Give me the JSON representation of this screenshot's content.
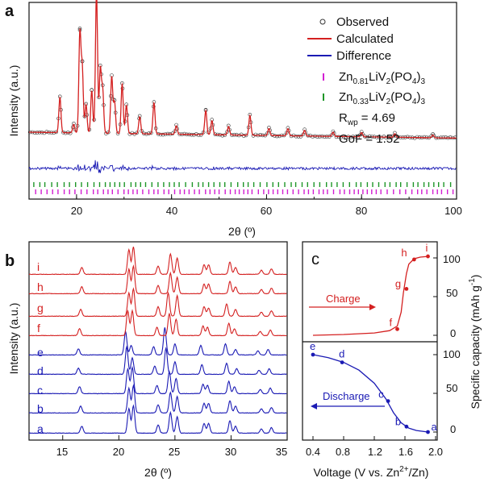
{
  "colors": {
    "observed": "#333333",
    "calculated": "#d42020",
    "difference": "#1a1ab4",
    "tick1": "#d21ed2",
    "tick2": "#1e9628",
    "charge": "#d42020",
    "discharge": "#1a1ab4"
  },
  "chart_data": [
    {
      "panel": "a",
      "type": "line",
      "xlabel": "2θ (º)",
      "ylabel": "Intensity (a.u.)",
      "xlim": [
        10,
        100
      ],
      "x_ticks": [
        "20",
        "40",
        "60",
        "80",
        "100"
      ],
      "legend": [
        "Observed",
        "Calculated",
        "Difference"
      ],
      "phase_ticks": [
        {
          "label_main": "Zn",
          "label_sub": "0.81",
          "label_rest": "LiV",
          "label_sub2": "2",
          "label_rest2": "(PO",
          "label_sub3": "4",
          "label_rest3": ")",
          "label_sub4": "3"
        },
        {
          "label_main": "Zn",
          "label_sub": "0.33",
          "label_rest": "LiV",
          "label_sub2": "2",
          "label_rest2": "(PO",
          "label_sub3": "4",
          "label_rest3": ")",
          "label_sub4": "3"
        }
      ],
      "rwp_label": "R",
      "rwp_sub": "wp",
      "rwp_value": " = 4.69",
      "gof": "GoF = 1.52",
      "baseline": 0.12,
      "peaks": [
        {
          "x": 16.5,
          "y": 0.25
        },
        {
          "x": 19.4,
          "y": 0.06
        },
        {
          "x": 20.7,
          "y": 0.7
        },
        {
          "x": 21.2,
          "y": 0.45
        },
        {
          "x": 22.0,
          "y": 0.2
        },
        {
          "x": 23.2,
          "y": 0.3
        },
        {
          "x": 24.2,
          "y": 1.0
        },
        {
          "x": 25.0,
          "y": 0.45
        },
        {
          "x": 25.5,
          "y": 0.3
        },
        {
          "x": 27.4,
          "y": 0.4
        },
        {
          "x": 28.0,
          "y": 0.22
        },
        {
          "x": 29.6,
          "y": 0.35
        },
        {
          "x": 30.5,
          "y": 0.2
        },
        {
          "x": 33.3,
          "y": 0.12
        },
        {
          "x": 36.3,
          "y": 0.22
        },
        {
          "x": 41.0,
          "y": 0.06
        },
        {
          "x": 47.2,
          "y": 0.17
        },
        {
          "x": 48.5,
          "y": 0.1
        },
        {
          "x": 52.0,
          "y": 0.06
        },
        {
          "x": 56.5,
          "y": 0.14
        },
        {
          "x": 60.5,
          "y": 0.05
        },
        {
          "x": 64.5,
          "y": 0.05
        },
        {
          "x": 68.0,
          "y": 0.04
        },
        {
          "x": 74.0,
          "y": 0.03
        },
        {
          "x": 80.0,
          "y": 0.03
        },
        {
          "x": 87.0,
          "y": 0.025
        },
        {
          "x": 95.0,
          "y": 0.02
        }
      ]
    },
    {
      "panel": "b",
      "type": "line",
      "xlabel": "2θ (º)",
      "ylabel": "Intensity (a.u.)",
      "xlim": [
        12,
        35
      ],
      "x_ticks": [
        "15",
        "20",
        "25",
        "30",
        "35"
      ],
      "series": [
        {
          "name": "a",
          "color": "blue",
          "peaks": [
            [
              16.7,
              0.25
            ],
            [
              20.9,
              0.9
            ],
            [
              21.3,
              1.0
            ],
            [
              23.5,
              0.3
            ],
            [
              24.6,
              0.75
            ],
            [
              25.2,
              0.6
            ],
            [
              27.6,
              0.35
            ],
            [
              28.0,
              0.35
            ],
            [
              29.9,
              0.45
            ],
            [
              30.4,
              0.25
            ],
            [
              32.7,
              0.15
            ],
            [
              33.6,
              0.2
            ]
          ]
        },
        {
          "name": "b",
          "color": "blue",
          "peaks": [
            [
              16.6,
              0.25
            ],
            [
              20.9,
              0.9
            ],
            [
              21.3,
              1.0
            ],
            [
              23.5,
              0.3
            ],
            [
              24.6,
              0.75
            ],
            [
              25.2,
              0.6
            ],
            [
              27.6,
              0.35
            ],
            [
              28.0,
              0.35
            ],
            [
              29.9,
              0.45
            ],
            [
              30.4,
              0.25
            ],
            [
              32.7,
              0.15
            ],
            [
              33.6,
              0.2
            ]
          ]
        },
        {
          "name": "c",
          "color": "blue",
          "peaks": [
            [
              16.5,
              0.25
            ],
            [
              20.8,
              0.9
            ],
            [
              21.2,
              0.95
            ],
            [
              23.4,
              0.3
            ],
            [
              24.5,
              0.8
            ],
            [
              25.1,
              0.55
            ],
            [
              27.5,
              0.35
            ],
            [
              27.9,
              0.3
            ],
            [
              29.8,
              0.45
            ],
            [
              30.3,
              0.25
            ],
            [
              32.6,
              0.15
            ],
            [
              33.5,
              0.2
            ]
          ]
        },
        {
          "name": "d",
          "color": "blue",
          "peaks": [
            [
              16.4,
              0.22
            ],
            [
              20.7,
              1.0
            ],
            [
              21.2,
              0.6
            ],
            [
              23.2,
              0.3
            ],
            [
              24.2,
              0.95
            ],
            [
              25.0,
              0.45
            ],
            [
              27.4,
              0.35
            ],
            [
              29.6,
              0.4
            ],
            [
              30.5,
              0.2
            ],
            [
              32.5,
              0.15
            ],
            [
              33.4,
              0.2
            ]
          ]
        },
        {
          "name": "e",
          "color": "blue",
          "peaks": [
            [
              16.4,
              0.22
            ],
            [
              20.6,
              0.85
            ],
            [
              21.1,
              0.35
            ],
            [
              23.1,
              0.3
            ],
            [
              24.1,
              1.0
            ],
            [
              25.0,
              0.4
            ],
            [
              27.3,
              0.35
            ],
            [
              29.5,
              0.4
            ],
            [
              30.4,
              0.2
            ],
            [
              32.4,
              0.15
            ],
            [
              33.3,
              0.2
            ]
          ]
        },
        {
          "name": "f",
          "color": "red",
          "peaks": [
            [
              16.5,
              0.25
            ],
            [
              20.8,
              0.9
            ],
            [
              21.2,
              0.9
            ],
            [
              23.4,
              0.3
            ],
            [
              24.5,
              0.8
            ],
            [
              25.1,
              0.6
            ],
            [
              27.5,
              0.35
            ],
            [
              27.9,
              0.3
            ],
            [
              29.8,
              0.45
            ],
            [
              30.3,
              0.25
            ],
            [
              32.6,
              0.15
            ],
            [
              33.5,
              0.2
            ]
          ]
        },
        {
          "name": "g",
          "color": "red",
          "peaks": [
            [
              16.6,
              0.25
            ],
            [
              20.9,
              0.85
            ],
            [
              21.3,
              1.0
            ],
            [
              23.5,
              0.35
            ],
            [
              24.4,
              0.85
            ],
            [
              25.2,
              0.75
            ],
            [
              27.6,
              0.35
            ],
            [
              28.0,
              0.3
            ],
            [
              29.6,
              0.45
            ],
            [
              30.4,
              0.25
            ],
            [
              32.7,
              0.15
            ],
            [
              33.6,
              0.2
            ]
          ]
        },
        {
          "name": "h",
          "color": "red",
          "peaks": [
            [
              16.7,
              0.25
            ],
            [
              20.9,
              0.9
            ],
            [
              21.3,
              1.0
            ],
            [
              23.5,
              0.3
            ],
            [
              24.6,
              0.75
            ],
            [
              25.2,
              0.6
            ],
            [
              27.6,
              0.35
            ],
            [
              28.0,
              0.35
            ],
            [
              29.9,
              0.45
            ],
            [
              30.4,
              0.25
            ],
            [
              32.7,
              0.15
            ],
            [
              33.6,
              0.2
            ]
          ]
        },
        {
          "name": "i",
          "color": "red",
          "peaks": [
            [
              16.7,
              0.25
            ],
            [
              20.9,
              0.9
            ],
            [
              21.3,
              1.0
            ],
            [
              23.5,
              0.3
            ],
            [
              24.6,
              0.75
            ],
            [
              25.2,
              0.6
            ],
            [
              27.6,
              0.35
            ],
            [
              28.0,
              0.35
            ],
            [
              29.9,
              0.45
            ],
            [
              30.4,
              0.25
            ],
            [
              32.7,
              0.15
            ],
            [
              33.6,
              0.2
            ]
          ]
        }
      ]
    },
    {
      "panel": "c",
      "type": "line",
      "xlabel_main": "Voltage (V vs. Zn",
      "xlabel_sup": "2+",
      "xlabel_rest": "/Zn)",
      "ylabel_main": "Specific capacity (mAh g",
      "ylabel_sup": "-1",
      "ylabel_rest": ")",
      "xlim": [
        0.3,
        2.0
      ],
      "x_ticks": [
        "0.4",
        "0.8",
        "1.2",
        "1.6",
        "2.0"
      ],
      "y_ticks": [
        "0",
        "50",
        "100"
      ],
      "charge_label": "Charge",
      "discharge_label": "Discharge",
      "charge": {
        "x": [
          0.4,
          0.8,
          1.2,
          1.4,
          1.5,
          1.55,
          1.58,
          1.62,
          1.65,
          1.72,
          1.8,
          1.9
        ],
        "y": [
          0,
          1,
          3,
          6,
          12,
          30,
          55,
          80,
          92,
          99,
          101,
          102
        ],
        "points": [
          {
            "label": "f",
            "x": 1.5,
            "y": 8
          },
          {
            "label": "g",
            "x": 1.62,
            "y": 60
          },
          {
            "label": "h",
            "x": 1.72,
            "y": 98
          },
          {
            "label": "i",
            "x": 1.9,
            "y": 102
          }
        ]
      },
      "discharge": {
        "x": [
          0.4,
          0.6,
          0.8,
          1.0,
          1.2,
          1.35,
          1.45,
          1.55,
          1.65,
          1.75,
          1.9
        ],
        "y": [
          100,
          96,
          90,
          80,
          63,
          43,
          25,
          12,
          5,
          2,
          0
        ],
        "points": [
          {
            "label": "e",
            "x": 0.4,
            "y": 100
          },
          {
            "label": "d",
            "x": 0.78,
            "y": 90
          },
          {
            "label": "c",
            "x": 1.38,
            "y": 40
          },
          {
            "label": "b",
            "x": 1.62,
            "y": 7
          },
          {
            "label": "a",
            "x": 1.9,
            "y": 0
          }
        ]
      }
    }
  ]
}
